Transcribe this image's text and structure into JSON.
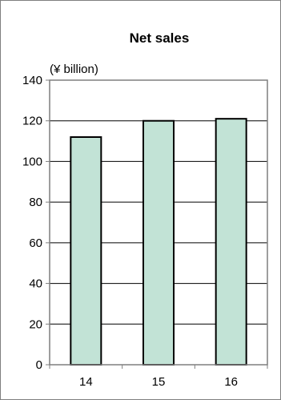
{
  "chart_data": {
    "type": "bar",
    "title": "Net sales",
    "ylabel": "(¥ billion)",
    "xlabel": "",
    "categories": [
      "14",
      "15",
      "16"
    ],
    "values": [
      112,
      120,
      121
    ],
    "ylim": [
      0,
      140
    ],
    "yticks": [
      0,
      20,
      40,
      60,
      80,
      100,
      120,
      140
    ],
    "grid": true,
    "legend": "none",
    "bar_color": "#c2e3d6",
    "bar_edge_color": "#000000"
  }
}
